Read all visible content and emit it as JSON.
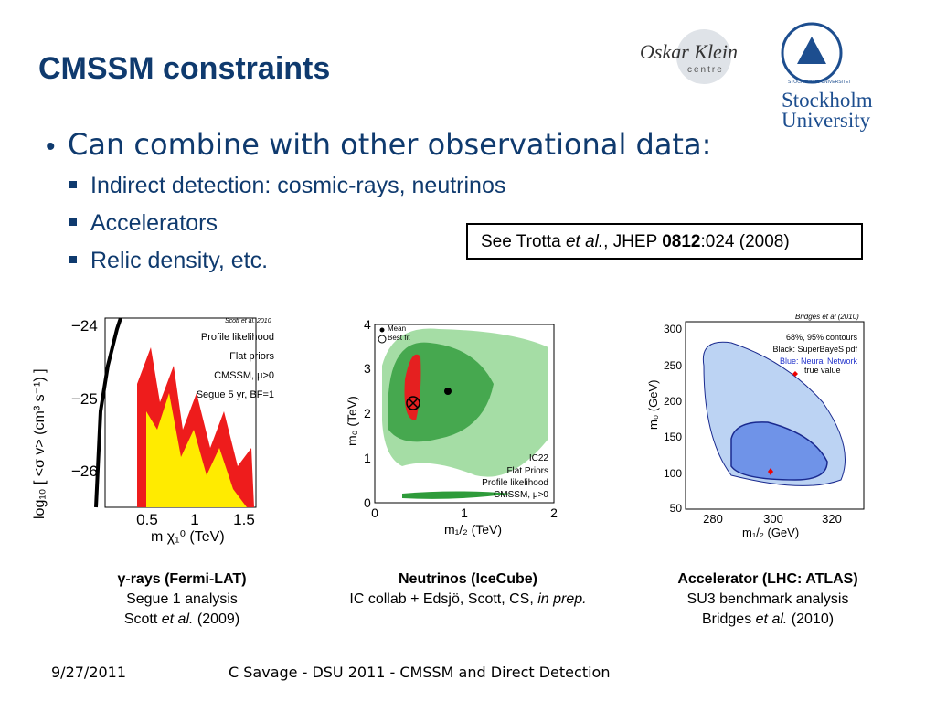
{
  "title": "CMSSM constraints",
  "bullet": "Can combine with other observational data:",
  "subbullets": [
    "Indirect detection: cosmic-rays, neutrinos",
    "Accelerators",
    "Relic density, etc."
  ],
  "reference": [
    "See Trotta ",
    "et al.",
    ", JHEP ",
    "0812",
    ":024 (2008)"
  ],
  "logos": {
    "okc": [
      "Oskar Klein",
      "centre"
    ],
    "su": [
      "Stockholm",
      "University"
    ],
    "seal": "STOCKHOLMS UNIVERSITET"
  },
  "panels": [
    {
      "credit": "Scott et al. 2010",
      "legend": [
        "Profile likelihood",
        "Flat priors",
        "CMSSM, μ>0",
        "Segue 5 yr, BF=1"
      ],
      "ylabel": "log₁₀ [ <σ v> (cm³ s⁻¹) ]",
      "xlabel": "m χ₁⁰ (TeV)",
      "yticks": [
        "−24",
        "−25",
        "−26"
      ],
      "xticks": [
        "0.5",
        "1",
        "1.5"
      ],
      "caption": [
        [
          "γ-rays (Fermi-LAT)"
        ],
        [
          "Segue 1 analysis"
        ],
        [
          "Scott ",
          "et al.",
          " (2009)"
        ]
      ]
    },
    {
      "markers": [
        "Mean",
        "Best fit"
      ],
      "legend": [
        "IC22",
        "Flat Priors",
        "Profile likelihood",
        "CMSSM, μ>0"
      ],
      "ylabel": "m₀ (TeV)",
      "xlabel": "m₁/₂ (TeV)",
      "yticks": [
        "4",
        "3",
        "2",
        "1",
        "0"
      ],
      "xticks": [
        "0",
        "1",
        "2"
      ],
      "caption": [
        [
          "Neutrinos (IceCube)"
        ],
        [
          "IC collab + Edsjö, Scott, CS, ",
          "in prep."
        ]
      ]
    },
    {
      "credit": "Bridges et al (2010)",
      "legend": [
        "68%, 95% contours",
        "Black: SuperBayeS pdf",
        "Blue: Neural Network",
        "true value"
      ],
      "ylabel": "m₀ (GeV)",
      "xlabel": "m₁/₂ (GeV)",
      "yticks": [
        "300",
        "250",
        "200",
        "150",
        "100",
        "50"
      ],
      "xticks": [
        "280",
        "300",
        "320"
      ],
      "caption": [
        [
          "Accelerator (LHC: ATLAS)"
        ],
        [
          "SU3 benchmark analysis"
        ],
        [
          "Bridges ",
          "et al.",
          " (2010)"
        ]
      ]
    }
  ],
  "footer": {
    "date": "9/27/2011",
    "text": "C Savage - DSU 2011 - CMSSM and Direct Detection"
  }
}
